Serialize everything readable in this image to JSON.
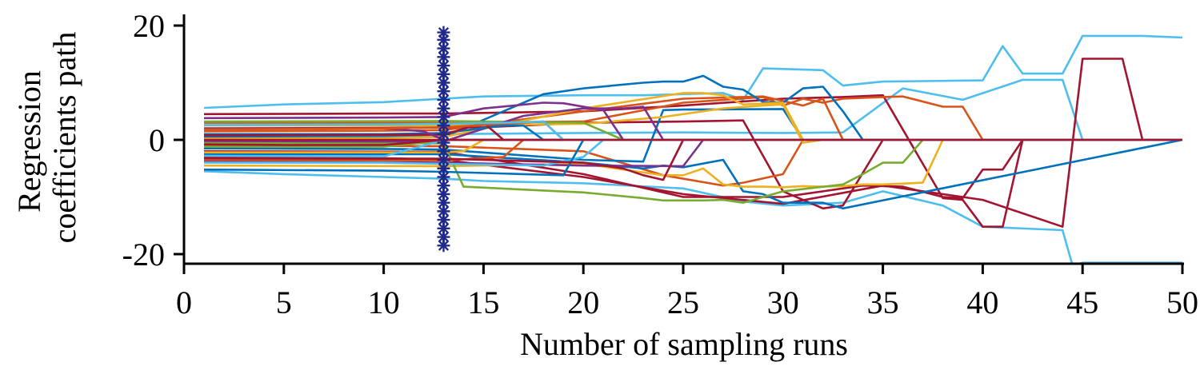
{
  "chart_data": {
    "type": "line",
    "xlabel": "Number of sampling runs",
    "ylabel_lines": [
      "Regression",
      "coefficients path"
    ],
    "xlim": [
      0,
      50
    ],
    "ylim": [
      -22,
      22
    ],
    "xticks": [
      0,
      5,
      10,
      15,
      20,
      25,
      30,
      35,
      40,
      45,
      50
    ],
    "yticks": [
      -20,
      0,
      20
    ],
    "grid": false,
    "legend": "none",
    "colors": [
      "#0072BD",
      "#D95319",
      "#EDB120",
      "#7E2F8E",
      "#77AC30",
      "#4DBEEE",
      "#A2142F"
    ],
    "marker_line": {
      "x": 13,
      "y_values": [
        -18.5,
        -17,
        -15.5,
        -14,
        -12.5,
        -11,
        -9.5,
        -8,
        -6.5,
        -5,
        -3.5,
        -2,
        -0.5,
        1,
        2.5,
        4,
        5.5,
        7,
        8.5,
        10,
        11.5,
        13,
        14.5,
        16,
        17.5,
        18.8
      ],
      "color": "#1F2A8C",
      "marker": "asterisk"
    },
    "series": [
      {
        "color": "#4DBEEE",
        "x": [
          1,
          5,
          10,
          13,
          15,
          20,
          23,
          25,
          27,
          28,
          29,
          30,
          32,
          33,
          35,
          40,
          41,
          42,
          44,
          45,
          48,
          50
        ],
        "y": [
          5.6,
          6.2,
          6.6,
          7.2,
          7.6,
          7.8,
          7.8,
          8.0,
          8.2,
          7.0,
          12.5,
          12.4,
          12.2,
          9.5,
          10.2,
          10.4,
          16.4,
          11.6,
          11.6,
          18.2,
          18.2,
          17.9
        ]
      },
      {
        "color": "#4DBEEE",
        "x": [
          1,
          5,
          10,
          13,
          15,
          20,
          25,
          28,
          30,
          33,
          35,
          38,
          40,
          44,
          44.5,
          45,
          50
        ],
        "y": [
          -5.5,
          -6,
          -6.5,
          -6.8,
          -7.2,
          -7.6,
          -8.5,
          -10.8,
          -11.5,
          -11,
          -9,
          -11.5,
          -15.2,
          -15.8,
          -22,
          -21.5,
          -21.5
        ]
      },
      {
        "color": "#4DBEEE",
        "x": [
          1,
          13,
          20,
          25,
          30,
          33,
          36,
          39,
          42,
          44,
          45,
          50
        ],
        "y": [
          1,
          1,
          1.2,
          1.3,
          1.2,
          1.3,
          9,
          7,
          10.5,
          10.5,
          0,
          0
        ]
      },
      {
        "color": "#A2142F",
        "x": [
          1,
          10,
          13,
          20,
          25,
          30,
          35,
          40,
          44,
          45,
          47,
          48,
          50
        ],
        "y": [
          -3,
          -3.2,
          -3.5,
          -6.5,
          -9.5,
          -11.2,
          -8,
          -10.5,
          -15.2,
          14.2,
          14.2,
          0,
          0
        ]
      },
      {
        "color": "#A2142F",
        "x": [
          1,
          10,
          13,
          20,
          25,
          30,
          33,
          35,
          38,
          39,
          40,
          41,
          42,
          50
        ],
        "y": [
          4.5,
          4.6,
          4.6,
          5,
          6,
          7.2,
          7.5,
          7.8,
          -10.2,
          -10.5,
          -15.2,
          -15.2,
          0,
          0
        ]
      },
      {
        "color": "#A2142F",
        "x": [
          1,
          13,
          20,
          25,
          30,
          32,
          34,
          36,
          38,
          39,
          40,
          41,
          42,
          50
        ],
        "y": [
          -2,
          -2.1,
          -6,
          -10,
          -10,
          -9,
          -8,
          -8.2,
          -10,
          -10.2,
          -5.2,
          -5.2,
          0,
          0
        ]
      },
      {
        "color": "#A2142F",
        "x": [
          1,
          10,
          15,
          20,
          25,
          28,
          30,
          32,
          33,
          35,
          50
        ],
        "y": [
          2,
          2.1,
          2.2,
          3,
          3.2,
          3.4,
          -9,
          -12,
          -11.5,
          0,
          0
        ]
      },
      {
        "color": "#D95319",
        "x": [
          1,
          13,
          20,
          25,
          29,
          30,
          31,
          32,
          33,
          35,
          36,
          38,
          39,
          40,
          50
        ],
        "y": [
          3,
          3,
          3.2,
          6.5,
          7.5,
          6,
          7.2,
          6.5,
          7.2,
          7.5,
          7.6,
          5.8,
          5.8,
          0,
          0
        ]
      },
      {
        "color": "#D95319",
        "x": [
          1,
          13,
          20,
          24,
          27,
          28,
          30,
          31,
          50
        ],
        "y": [
          -1,
          -1.1,
          -2,
          -6.2,
          -8,
          -7.5,
          -6,
          0,
          0
        ]
      },
      {
        "color": "#D95319",
        "x": [
          1,
          10,
          13,
          20,
          25,
          29,
          31,
          32,
          33,
          50
        ],
        "y": [
          1.5,
          1.6,
          1.7,
          5,
          7.2,
          7.6,
          6,
          7.2,
          0,
          0
        ]
      },
      {
        "color": "#0072BD",
        "x": [
          1,
          13,
          18,
          20,
          23,
          24,
          25,
          26,
          27,
          28,
          29,
          30,
          31,
          32,
          33,
          34,
          35,
          50
        ],
        "y": [
          0.5,
          0.5,
          8,
          9,
          10,
          10.2,
          10.2,
          11.2,
          9.3,
          8.8,
          6.6,
          6.5,
          9,
          9.3,
          5,
          0,
          0,
          0
        ]
      },
      {
        "color": "#0072BD",
        "x": [
          1,
          10,
          13,
          20,
          23,
          24,
          25,
          30,
          31,
          50
        ],
        "y": [
          -1.5,
          -1.6,
          -1.7,
          -3.5,
          -3.8,
          5.2,
          5.3,
          5.4,
          0,
          0
        ]
      },
      {
        "color": "#0072BD",
        "x": [
          1,
          13,
          20,
          23,
          24,
          25,
          27,
          28,
          29,
          30,
          32,
          33,
          50
        ],
        "y": [
          -2.5,
          -2.5,
          -4,
          -5,
          -4.5,
          -4.8,
          -3.5,
          -9,
          -9.5,
          -11,
          -11,
          -12,
          0
        ]
      },
      {
        "color": "#EDB120",
        "x": [
          1,
          10,
          13,
          20,
          25,
          26,
          27,
          28,
          30,
          31,
          32,
          50
        ],
        "y": [
          0.2,
          0.3,
          0.5,
          5.5,
          8.2,
          8.2,
          7.8,
          6.2,
          6.5,
          0,
          0,
          0
        ]
      },
      {
        "color": "#EDB120",
        "x": [
          1,
          13,
          20,
          24,
          25,
          26,
          27,
          28,
          29,
          30,
          31,
          32,
          33,
          34,
          35,
          37,
          38,
          50
        ],
        "y": [
          -4.5,
          -4.6,
          -4.2,
          -6.2,
          -6.2,
          -5,
          -7.8,
          -8.2,
          -8.2,
          -8.3,
          -8.1,
          -8.2,
          -8.1,
          -7.8,
          -7.8,
          -7.5,
          0,
          0
        ]
      },
      {
        "color": "#EDB120",
        "x": [
          1,
          13,
          20,
          24,
          27,
          29,
          30,
          31,
          32,
          50
        ],
        "y": [
          2.5,
          2.5,
          2.8,
          4,
          5.5,
          6,
          6.2,
          -0.5,
          0,
          0
        ]
      },
      {
        "color": "#77AC30",
        "x": [
          1,
          13,
          14,
          20,
          23,
          24,
          25,
          26,
          27,
          28,
          30,
          33,
          34,
          35,
          36,
          37,
          50
        ],
        "y": [
          -0.5,
          -0.6,
          -8.2,
          -9.2,
          -10.2,
          -10.6,
          -10.6,
          -10.6,
          -10.5,
          -11,
          -9,
          -7.8,
          -6,
          -4,
          -4,
          0,
          0
        ]
      },
      {
        "color": "#77AC30",
        "x": [
          1,
          13,
          20,
          22,
          50
        ],
        "y": [
          3.2,
          3.3,
          3,
          0,
          0
        ]
      },
      {
        "color": "#7E2F8E",
        "x": [
          1,
          10,
          13,
          20,
          25,
          26,
          50
        ],
        "y": [
          -3.8,
          -3.9,
          -4,
          -4.5,
          -4.6,
          0,
          0
        ]
      },
      {
        "color": "#7E2F8E",
        "x": [
          1,
          10,
          13,
          17,
          20,
          22,
          23,
          24,
          50
        ],
        "y": [
          -0.2,
          -0.3,
          -0.3,
          4.2,
          5.5,
          5.5,
          5.8,
          0,
          0
        ]
      },
      {
        "color": "#4DBEEE",
        "x": [
          1,
          10,
          13,
          18,
          20,
          21,
          50
        ],
        "y": [
          -4,
          -4,
          -4.2,
          -4.5,
          -3,
          0,
          0
        ]
      },
      {
        "color": "#0072BD",
        "x": [
          1,
          10,
          13,
          16,
          17,
          18,
          50
        ],
        "y": [
          1,
          1,
          1.2,
          2.5,
          2.5,
          0,
          0
        ]
      },
      {
        "color": "#D95319",
        "x": [
          1,
          13,
          16,
          17,
          50
        ],
        "y": [
          -3.5,
          -3.6,
          -3,
          0,
          0
        ]
      },
      {
        "color": "#A2142F",
        "x": [
          1,
          13,
          15,
          16,
          50
        ],
        "y": [
          0.8,
          0.9,
          3,
          0,
          0
        ]
      },
      {
        "color": "#EDB120",
        "x": [
          1,
          13,
          14,
          15,
          50
        ],
        "y": [
          -2.2,
          -2.2,
          -2,
          0,
          0
        ]
      },
      {
        "color": "#77AC30",
        "x": [
          1,
          10,
          12,
          13,
          50
        ],
        "y": [
          -1.2,
          -1.2,
          -0.5,
          0,
          0
        ]
      },
      {
        "color": "#7E2F8E",
        "x": [
          1,
          10,
          12,
          13,
          50
        ],
        "y": [
          2,
          2,
          1.5,
          0,
          0
        ]
      },
      {
        "color": "#4DBEEE",
        "x": [
          1,
          10,
          12,
          13,
          50
        ],
        "y": [
          -2.8,
          -2.9,
          -1,
          0,
          0
        ]
      },
      {
        "color": "#A2142F",
        "x": [
          1,
          5,
          10,
          13,
          50
        ],
        "y": [
          -0.8,
          -0.9,
          -0.9,
          0,
          0
        ]
      },
      {
        "color": "#0072BD",
        "x": [
          1,
          10,
          13,
          17,
          19,
          20,
          50
        ],
        "y": [
          -5.2,
          -5.4,
          -5.6,
          -6,
          -6.2,
          0,
          0
        ]
      },
      {
        "color": "#D95319",
        "x": [
          1,
          10,
          13,
          18,
          19,
          20,
          50
        ],
        "y": [
          1.8,
          2,
          2.2,
          3.2,
          0,
          0,
          0
        ]
      },
      {
        "color": "#7E2F8E",
        "x": [
          1,
          10,
          13,
          15,
          18,
          19,
          21,
          22,
          50
        ],
        "y": [
          3.8,
          3.9,
          4,
          5.5,
          6.5,
          6.4,
          5.2,
          0,
          0
        ]
      },
      {
        "color": "#A2142F",
        "x": [
          1,
          10,
          13,
          20,
          22,
          23,
          24,
          25,
          50
        ],
        "y": [
          -3.2,
          -3.3,
          -3.3,
          -4,
          -5,
          -6.2,
          -7,
          0,
          0
        ]
      },
      {
        "color": "#4DBEEE",
        "x": [
          1,
          10,
          13,
          16,
          18,
          19,
          50
        ],
        "y": [
          2.6,
          2.7,
          2.8,
          3,
          3.2,
          0,
          0
        ]
      },
      {
        "color": "#A2142F",
        "x": [
          1,
          50
        ],
        "y": [
          0,
          0
        ]
      }
    ]
  }
}
